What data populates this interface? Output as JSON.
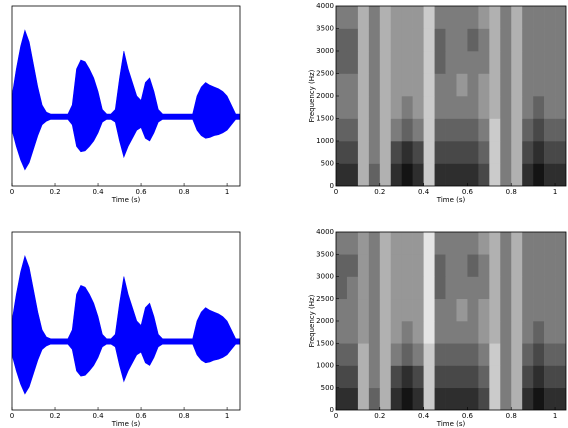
{
  "chart_data": [
    {
      "type": "waveform",
      "color": "#0000ff",
      "xlabel": "Time (s)",
      "xlim": [
        0,
        1.06
      ],
      "ylim": [
        -1,
        1
      ],
      "xticks": [
        0,
        0.2,
        0.4,
        0.6,
        0.8,
        1
      ],
      "x": [
        0,
        0.02,
        0.04,
        0.06,
        0.08,
        0.1,
        0.12,
        0.14,
        0.16,
        0.18,
        0.2,
        0.22,
        0.24,
        0.26,
        0.28,
        0.3,
        0.32,
        0.34,
        0.36,
        0.38,
        0.4,
        0.42,
        0.44,
        0.46,
        0.48,
        0.5,
        0.52,
        0.54,
        0.56,
        0.58,
        0.6,
        0.62,
        0.64,
        0.66,
        0.68,
        0.7,
        0.72,
        0.74,
        0.76,
        0.78,
        0.8,
        0.82,
        0.84,
        0.86,
        0.88,
        0.9,
        0.92,
        0.94,
        0.96,
        0.98,
        1,
        1.02,
        1.04,
        1.06
      ],
      "upper": [
        0.0,
        0.3,
        0.55,
        0.73,
        0.6,
        0.35,
        0.1,
        -0.1,
        -0.18,
        -0.2,
        -0.2,
        -0.2,
        -0.2,
        -0.2,
        -0.1,
        0.3,
        0.4,
        0.38,
        0.3,
        0.2,
        0.05,
        -0.15,
        -0.2,
        -0.2,
        -0.15,
        0.2,
        0.5,
        0.3,
        0.15,
        0.0,
        -0.05,
        0.15,
        0.2,
        0.05,
        -0.15,
        -0.2,
        -0.2,
        -0.2,
        -0.2,
        -0.2,
        -0.2,
        -0.2,
        -0.2,
        0.0,
        0.1,
        0.15,
        0.12,
        0.1,
        0.08,
        0.05,
        0.0,
        -0.1,
        -0.2,
        -0.2
      ],
      "lower": [
        -0.38,
        -0.56,
        -0.71,
        -0.82,
        -0.74,
        -0.59,
        -0.44,
        -0.32,
        -0.28,
        -0.26,
        -0.26,
        -0.26,
        -0.26,
        -0.26,
        -0.32,
        -0.56,
        -0.62,
        -0.61,
        -0.56,
        -0.5,
        -0.41,
        -0.29,
        -0.26,
        -0.26,
        -0.29,
        -0.5,
        -0.68,
        -0.56,
        -0.47,
        -0.38,
        -0.35,
        -0.47,
        -0.5,
        -0.41,
        -0.29,
        -0.26,
        -0.26,
        -0.26,
        -0.26,
        -0.26,
        -0.26,
        -0.26,
        -0.26,
        -0.38,
        -0.44,
        -0.47,
        -0.46,
        -0.44,
        -0.43,
        -0.41,
        -0.38,
        -0.32,
        -0.26,
        -0.26
      ]
    },
    {
      "type": "spectrogram",
      "xlabel": "Time (s)",
      "ylabel": "Frequency (Hz)",
      "xlim": [
        0,
        1.05
      ],
      "ylim": [
        0,
        4000
      ],
      "zlim": [
        0,
        9
      ],
      "xticks": [
        0,
        0.2,
        0.4,
        0.6,
        0.8,
        1
      ],
      "yticks": [
        0,
        500,
        1000,
        1500,
        2000,
        2500,
        3000,
        3500,
        4000
      ],
      "time_bins": [
        0,
        0.05,
        0.1,
        0.15,
        0.2,
        0.25,
        0.3,
        0.35,
        0.4,
        0.45,
        0.5,
        0.55,
        0.6,
        0.65,
        0.7,
        0.75,
        0.8,
        0.85,
        0.9,
        0.95,
        1,
        1.05
      ],
      "freq_bins": [
        0,
        500,
        1000,
        1500,
        2000,
        2500,
        3000,
        3500,
        4000
      ],
      "z": [
        [
          8,
          8,
          3,
          6,
          3,
          8,
          9,
          8,
          2,
          8,
          8,
          8,
          8,
          7,
          2,
          5,
          3,
          8,
          9,
          8,
          8
        ],
        [
          7,
          7,
          3,
          5,
          3,
          7,
          8,
          7,
          2,
          7,
          7,
          7,
          7,
          6,
          2,
          5,
          3,
          7,
          8,
          7,
          7
        ],
        [
          6,
          6,
          3,
          5,
          3,
          5,
          6,
          5,
          2,
          6,
          6,
          6,
          6,
          5,
          2,
          5,
          3,
          6,
          7,
          6,
          6
        ],
        [
          5,
          5,
          3,
          5,
          3,
          4,
          5,
          4,
          2,
          5,
          5,
          5,
          5,
          4,
          3,
          5,
          3,
          5,
          6,
          5,
          5
        ],
        [
          5,
          5,
          3,
          5,
          3,
          4,
          4,
          4,
          2,
          5,
          5,
          4,
          5,
          4,
          3,
          5,
          3,
          5,
          5,
          5,
          5
        ],
        [
          6,
          6,
          3,
          5,
          3,
          4,
          4,
          4,
          2,
          6,
          5,
          5,
          5,
          5,
          3,
          5,
          3,
          5,
          5,
          5,
          5
        ],
        [
          6,
          6,
          3,
          5,
          3,
          4,
          4,
          4,
          2,
          6,
          5,
          5,
          6,
          5,
          3,
          5,
          3,
          5,
          5,
          5,
          5
        ],
        [
          5,
          5,
          3,
          5,
          3,
          4,
          4,
          4,
          2,
          5,
          5,
          5,
          5,
          4,
          3,
          5,
          3,
          5,
          5,
          5,
          5
        ]
      ]
    },
    {
      "type": "waveform",
      "color": "#0000ff",
      "xlabel": "Time (s)",
      "xlim": [
        0,
        1.06
      ],
      "ylim": [
        -1,
        1
      ],
      "xticks": [
        0,
        0.2,
        0.4,
        0.6,
        0.8,
        1
      ],
      "x": [
        0,
        0.02,
        0.04,
        0.06,
        0.08,
        0.1,
        0.12,
        0.14,
        0.16,
        0.18,
        0.2,
        0.22,
        0.24,
        0.26,
        0.28,
        0.3,
        0.32,
        0.34,
        0.36,
        0.38,
        0.4,
        0.42,
        0.44,
        0.46,
        0.48,
        0.5,
        0.52,
        0.54,
        0.56,
        0.58,
        0.6,
        0.62,
        0.64,
        0.66,
        0.68,
        0.7,
        0.72,
        0.74,
        0.76,
        0.78,
        0.8,
        0.82,
        0.84,
        0.86,
        0.88,
        0.9,
        0.92,
        0.94,
        0.96,
        0.98,
        1,
        1.02,
        1.04,
        1.06
      ],
      "upper": [
        0.0,
        0.3,
        0.55,
        0.73,
        0.6,
        0.35,
        0.1,
        -0.1,
        -0.18,
        -0.2,
        -0.2,
        -0.2,
        -0.2,
        -0.2,
        -0.1,
        0.3,
        0.4,
        0.38,
        0.3,
        0.2,
        0.05,
        -0.15,
        -0.2,
        -0.2,
        -0.15,
        0.2,
        0.5,
        0.3,
        0.15,
        0.0,
        -0.05,
        0.15,
        0.2,
        0.05,
        -0.15,
        -0.2,
        -0.2,
        -0.2,
        -0.2,
        -0.2,
        -0.2,
        -0.2,
        -0.2,
        0.0,
        0.1,
        0.15,
        0.12,
        0.1,
        0.08,
        0.05,
        0.0,
        -0.1,
        -0.2,
        -0.2
      ],
      "lower": [
        -0.38,
        -0.56,
        -0.71,
        -0.82,
        -0.74,
        -0.59,
        -0.44,
        -0.32,
        -0.28,
        -0.26,
        -0.26,
        -0.26,
        -0.26,
        -0.26,
        -0.32,
        -0.56,
        -0.62,
        -0.61,
        -0.56,
        -0.5,
        -0.41,
        -0.29,
        -0.26,
        -0.26,
        -0.29,
        -0.5,
        -0.68,
        -0.56,
        -0.47,
        -0.38,
        -0.35,
        -0.47,
        -0.5,
        -0.41,
        -0.29,
        -0.26,
        -0.26,
        -0.26,
        -0.26,
        -0.26,
        -0.26,
        -0.26,
        -0.26,
        -0.38,
        -0.44,
        -0.47,
        -0.46,
        -0.44,
        -0.43,
        -0.41,
        -0.38,
        -0.32,
        -0.26,
        -0.26
      ]
    },
    {
      "type": "spectrogram",
      "xlabel": "Time (s)",
      "ylabel": "Frequency (Hz)",
      "xlim": [
        0,
        1.05
      ],
      "ylim": [
        0,
        4000
      ],
      "zlim": [
        0,
        9
      ],
      "xticks": [
        0,
        0.2,
        0.4,
        0.6,
        0.8,
        1
      ],
      "yticks": [
        0,
        500,
        1000,
        1500,
        2000,
        2500,
        3000,
        3500,
        4000
      ],
      "time_bins": [
        0,
        0.05,
        0.1,
        0.15,
        0.2,
        0.25,
        0.3,
        0.35,
        0.4,
        0.45,
        0.5,
        0.55,
        0.6,
        0.65,
        0.7,
        0.75,
        0.8,
        0.85,
        0.9,
        0.95,
        1,
        1.05
      ],
      "freq_bins": [
        0,
        500,
        1000,
        1500,
        2000,
        2500,
        3000,
        3500,
        4000
      ],
      "z": [
        [
          8,
          8,
          3,
          6,
          3,
          8,
          9,
          8,
          2,
          8,
          8,
          8,
          8,
          7,
          2,
          5,
          3,
          8,
          9,
          8,
          8
        ],
        [
          7,
          7,
          3,
          5,
          3,
          7,
          8,
          7,
          2,
          7,
          7,
          7,
          7,
          6,
          2,
          5,
          3,
          7,
          8,
          7,
          7
        ],
        [
          6,
          6,
          3,
          5,
          3,
          5,
          6,
          5,
          2,
          6,
          6,
          6,
          6,
          5,
          2,
          5,
          3,
          6,
          7,
          6,
          6
        ],
        [
          5,
          5,
          4,
          5,
          3,
          4,
          5,
          4,
          1,
          5,
          5,
          5,
          5,
          4,
          3,
          5,
          3,
          5,
          6,
          5,
          5
        ],
        [
          5,
          5,
          4,
          5,
          3,
          4,
          4,
          4,
          1,
          5,
          5,
          4,
          5,
          4,
          3,
          5,
          3,
          5,
          5,
          5,
          5
        ],
        [
          6,
          5,
          4,
          5,
          3,
          4,
          4,
          4,
          1,
          6,
          5,
          5,
          5,
          5,
          3,
          5,
          3,
          5,
          5,
          5,
          5
        ],
        [
          6,
          6,
          4,
          5,
          3,
          4,
          4,
          4,
          1,
          6,
          5,
          5,
          6,
          5,
          3,
          5,
          3,
          5,
          5,
          5,
          5
        ],
        [
          5,
          5,
          4,
          5,
          3,
          4,
          4,
          4,
          1,
          5,
          5,
          5,
          5,
          4,
          3,
          5,
          3,
          5,
          5,
          5,
          5
        ]
      ]
    }
  ]
}
